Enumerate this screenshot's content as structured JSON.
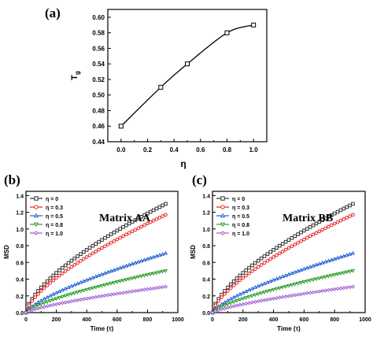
{
  "chart_data": [
    {
      "panel_label": "(a)",
      "type": "line",
      "xlabel": "η",
      "ylabel_main": "T",
      "ylabel_sub": "g",
      "xlim": [
        -0.1,
        1.1
      ],
      "ylim": [
        0.44,
        0.61
      ],
      "xticks": [
        "0.0",
        "0.2",
        "0.4",
        "0.6",
        "0.8",
        "1.0"
      ],
      "yticks": [
        "0.44",
        "0.46",
        "0.48",
        "0.50",
        "0.52",
        "0.54",
        "0.56",
        "0.58",
        "0.60"
      ],
      "series": [
        {
          "x": [
            0.0,
            0.3,
            0.5,
            0.8,
            1.0
          ],
          "y": [
            0.46,
            0.51,
            0.54,
            0.58,
            0.59
          ]
        }
      ],
      "marker": "open-square",
      "grid": false
    },
    {
      "panel_label": "(b)",
      "annotation": "Matrix AA",
      "type": "line",
      "xlabel": "Time (τ)",
      "ylabel": "MSD",
      "xlim": [
        0,
        1000
      ],
      "ylim": [
        0,
        1.45
      ],
      "xticks": [
        "0",
        "200",
        "400",
        "600",
        "800",
        "1000"
      ],
      "yticks": [
        "0.0",
        "0.2",
        "0.4",
        "0.6",
        "0.8",
        "1.0",
        "1.2",
        "1.4"
      ],
      "legend_position": "top-left",
      "series": [
        {
          "name": "η = 0",
          "color": "#333333",
          "marker": "square",
          "end": 1.3,
          "exponent": 0.66
        },
        {
          "name": "η = 0.3",
          "color": "#e8231f",
          "marker": "circle",
          "end": 1.17,
          "exponent": 0.68
        },
        {
          "name": "η = 0.5",
          "color": "#1f5fd6",
          "marker": "triangle",
          "end": 0.71,
          "exponent": 0.72
        },
        {
          "name": "η = 0.8",
          "color": "#2ca02c",
          "marker": "triangle-down",
          "end": 0.5,
          "exponent": 0.72
        },
        {
          "name": "η = 1.0",
          "color": "#9b59d0",
          "marker": "diamond",
          "end": 0.31,
          "exponent": 0.74
        }
      ],
      "x_end": 920,
      "grid": false
    },
    {
      "panel_label": "(c)",
      "annotation": "Matrix BB",
      "type": "line",
      "xlabel": "Time (τ)",
      "ylabel": "MSD",
      "xlim": [
        0,
        1000
      ],
      "ylim": [
        0,
        1.45
      ],
      "xticks": [
        "0",
        "200",
        "400",
        "600",
        "800",
        "1000"
      ],
      "yticks": [
        "0.0",
        "0.2",
        "0.4",
        "0.6",
        "0.8",
        "1.0",
        "1.2",
        "1.4"
      ],
      "legend_position": "top-left",
      "series": [
        {
          "name": "η = 0",
          "color": "#333333",
          "marker": "square",
          "end": 1.3,
          "exponent": 0.66
        },
        {
          "name": "η = 0.3",
          "color": "#e8231f",
          "marker": "circle",
          "end": 1.17,
          "exponent": 0.68
        },
        {
          "name": "η = 0.5",
          "color": "#1f5fd6",
          "marker": "triangle",
          "end": 0.71,
          "exponent": 0.72
        },
        {
          "name": "η = 0.8",
          "color": "#2ca02c",
          "marker": "triangle-down",
          "end": 0.5,
          "exponent": 0.72
        },
        {
          "name": "η = 1.0",
          "color": "#9b59d0",
          "marker": "diamond",
          "end": 0.31,
          "exponent": 0.74
        }
      ],
      "x_end": 920,
      "grid": false
    }
  ]
}
